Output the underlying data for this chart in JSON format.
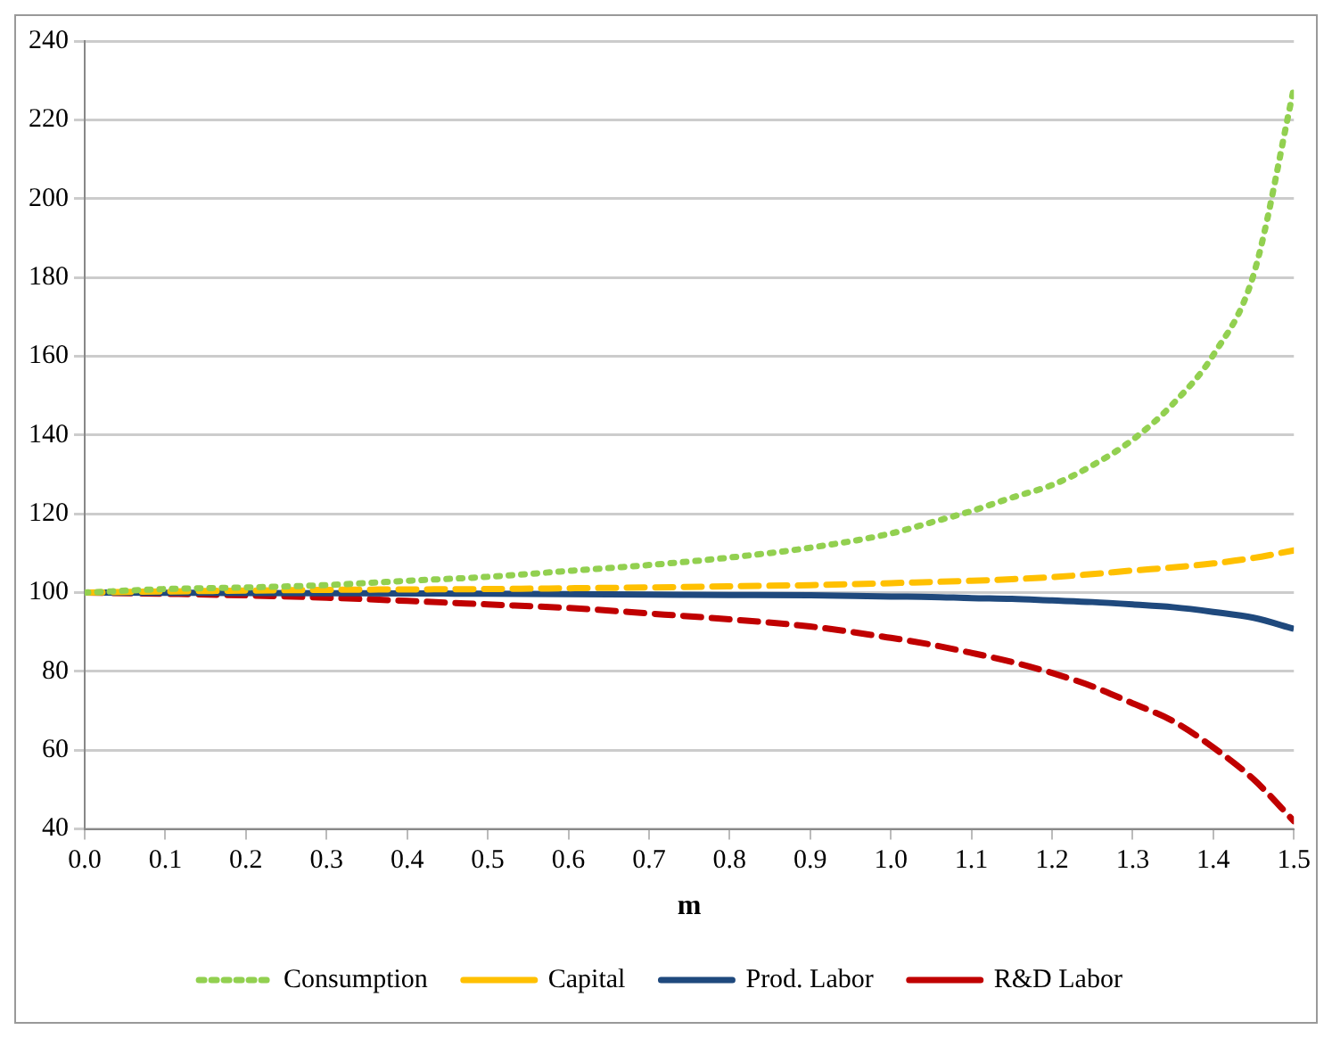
{
  "chart_data": {
    "type": "line",
    "xlabel": "m",
    "x": [
      0,
      0.1,
      0.2,
      0.3,
      0.4,
      0.5,
      0.6,
      0.7,
      0.8,
      0.9,
      1.0,
      1.05,
      1.1,
      1.15,
      1.2,
      1.25,
      1.3,
      1.35,
      1.4,
      1.45,
      1.5
    ],
    "series": [
      {
        "name": "Consumption",
        "color": "#92d050",
        "line_style": "dotted",
        "values": [
          100,
          100.9,
          101.3,
          101.9,
          103,
          104,
          105.5,
          107,
          108.9,
          111.4,
          115,
          117.8,
          120.7,
          124.1,
          127.3,
          132.3,
          138.8,
          147.9,
          160.3,
          180.7,
          228
        ]
      },
      {
        "name": "Capital",
        "color": "#ffc000",
        "line_style": "dashed",
        "values": [
          100,
          100.3,
          100.5,
          100.7,
          100.8,
          100.9,
          101.1,
          101.3,
          101.6,
          101.9,
          102.4,
          102.7,
          103,
          103.4,
          103.9,
          104.7,
          105.6,
          106.4,
          107.4,
          108.8,
          110.7
        ]
      },
      {
        "name": "Prod. Labor",
        "color": "#1f497d",
        "line_style": "solid",
        "values": [
          100,
          99.95,
          99.9,
          99.85,
          99.8,
          99.7,
          99.6,
          99.5,
          99.4,
          99.3,
          99.0,
          98.9,
          98.6,
          98.4,
          98.0,
          97.6,
          97.0,
          96.3,
          95.1,
          93.6,
          90.8
        ]
      },
      {
        "name": "R&D Labor",
        "color": "#c00000",
        "line_style": "dashed",
        "values": [
          100,
          99.7,
          99.3,
          98.7,
          97.9,
          97,
          96.1,
          94.7,
          93.2,
          91.4,
          88.5,
          86.8,
          84.7,
          82.4,
          79.6,
          76.2,
          71.9,
          67.4,
          60.7,
          52.6,
          42
        ]
      }
    ],
    "xlim": [
      0,
      1.5
    ],
    "xticks": [
      {
        "value": 0,
        "label": "0.0"
      },
      0.1,
      0.2,
      0.3,
      0.4,
      0.5,
      0.6,
      0.7,
      0.8,
      0.9,
      {
        "value": 1,
        "label": "1.0"
      },
      1.1,
      1.2,
      1.3,
      1.4,
      1.5
    ],
    "ylim": [
      40,
      240
    ],
    "yticks": [
      40,
      60,
      80,
      100,
      120,
      140,
      160,
      180,
      200,
      220,
      240
    ],
    "grid": "y",
    "legend": "bottom",
    "marker": "none"
  }
}
